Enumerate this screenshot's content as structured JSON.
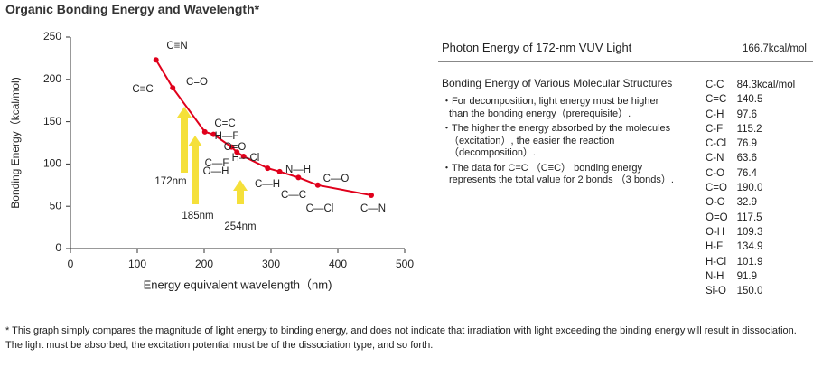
{
  "header": {
    "title": "Organic Bonding Energy and Wavelength*"
  },
  "chart_data": {
    "type": "line",
    "xlabel": "Energy equivalent wavelength（nm)",
    "ylabel": "Bonding Energy（kcal/mol)",
    "x": [
      128,
      153,
      201,
      214,
      241,
      249,
      259,
      295,
      313,
      341,
      370,
      450
    ],
    "values": [
      223,
      190,
      138,
      135,
      120,
      114,
      109,
      95,
      91,
      84,
      75,
      63
    ],
    "color": "#e0001b",
    "xlim": [
      0,
      500
    ],
    "xticks": [
      0,
      100,
      200,
      300,
      400,
      500
    ],
    "ylim": [
      0,
      250
    ],
    "yticks": [
      0,
      50,
      100,
      150,
      200,
      250
    ],
    "bond_labels": [
      "C≡N",
      "C≡C",
      "C=O",
      "C=C",
      "H—F",
      "O=O",
      "H—Cl",
      "C—F",
      "O—H",
      "N—H",
      "C—O",
      "C—H",
      "C—C",
      "C—Cl",
      "C—N"
    ],
    "wavelength_labels": [
      "172nm",
      "185nm",
      "254nm"
    ],
    "arrow_color": "#f5e03a"
  },
  "side": {
    "photon": {
      "label": "Photon Energy of 172-nm VUV Light",
      "value": "166.7kcal/mol"
    },
    "bonding": {
      "title": "Bonding Energy of Various Molecular Structures",
      "notes": [
        "For decomposition, light energy must be higher than the bonding energy（prerequisite）.",
        "The higher the energy absorbed by the molecules （excitation）, the easier the reaction （decomposition）.",
        "The data for C=C （C≡C） bonding energy represents the total value for 2 bonds （3 bonds）."
      ],
      "table": [
        [
          "C-C",
          "84.3kcal/mol"
        ],
        [
          "C=C",
          "140.5"
        ],
        [
          "C-H",
          "97.6"
        ],
        [
          "C-F",
          "115.2"
        ],
        [
          "C-Cl",
          "76.9"
        ],
        [
          "C-N",
          "63.6"
        ],
        [
          "C-O",
          "76.4"
        ],
        [
          "C=O",
          "190.0"
        ],
        [
          "O-O",
          "32.9"
        ],
        [
          "O=O",
          "117.5"
        ],
        [
          "O-H",
          "109.3"
        ],
        [
          "H-F",
          "134.9"
        ],
        [
          "H-Cl",
          "101.9"
        ],
        [
          "N-H",
          "91.9"
        ],
        [
          "Si-O",
          "150.0"
        ]
      ]
    }
  },
  "footer": {
    "notes": [
      "* This graph simply compares the magnitude of light energy to binding energy, and does not indicate that irradiation with light exceeding the binding energy will result in dissociation.",
      "The light must be absorbed, the excitation potential must be of the dissociation type, and so forth."
    ]
  }
}
